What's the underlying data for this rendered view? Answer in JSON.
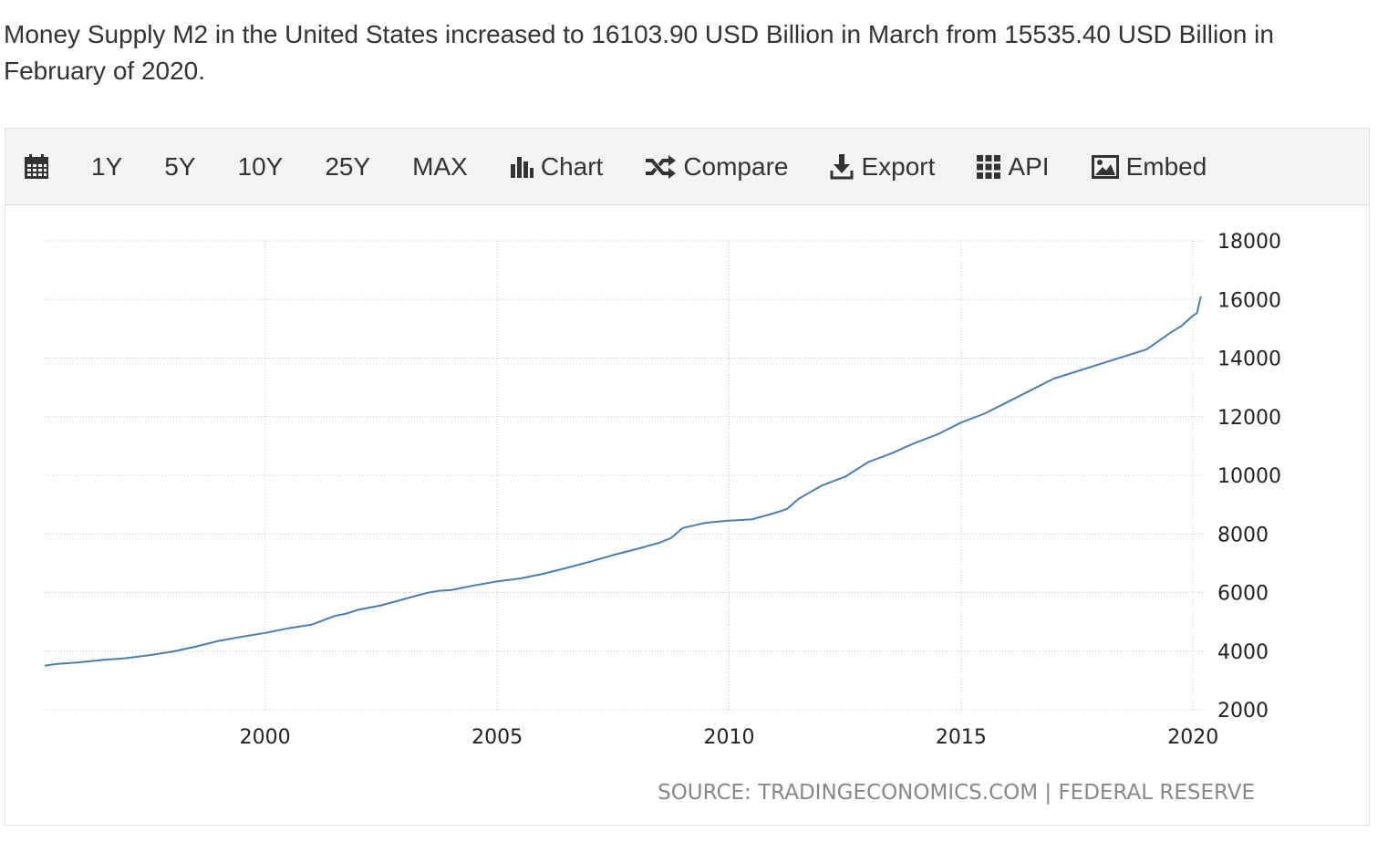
{
  "description": "Money Supply M2 in the United States increased to 16103.90 USD Billion in March from 15535.40 USD Billion in February of 2020.",
  "toolbar": {
    "items": [
      {
        "label": "1Y"
      },
      {
        "label": "5Y"
      },
      {
        "label": "10Y"
      },
      {
        "label": "25Y"
      },
      {
        "label": "MAX"
      },
      {
        "label": "Chart",
        "icon": "bar-chart-icon"
      },
      {
        "label": "Compare",
        "icon": "shuffle-icon"
      },
      {
        "label": "Export",
        "icon": "download-icon"
      },
      {
        "label": "API",
        "icon": "grid-icon"
      },
      {
        "label": "Embed",
        "icon": "image-icon"
      }
    ]
  },
  "source": "SOURCE: TRADINGECONOMICS.COM | FEDERAL RESERVE",
  "chart_data": {
    "type": "line",
    "title": "",
    "xlabel": "",
    "ylabel": "",
    "xlim": [
      1995.25,
      2020.25
    ],
    "ylim": [
      2000,
      18000
    ],
    "x_ticks": [
      2000,
      2005,
      2010,
      2015,
      2020
    ],
    "y_ticks": [
      2000,
      4000,
      6000,
      8000,
      10000,
      12000,
      14000,
      16000,
      18000
    ],
    "y_axis_position": "right",
    "grid": true,
    "legend": "none",
    "line_color": "#4a7fad",
    "series": [
      {
        "x": [
          1995.25,
          1995.5,
          1996.0,
          1996.5,
          1997.0,
          1997.5,
          1998.0,
          1998.5,
          1999.0,
          1999.5,
          2000.0,
          2000.5,
          2001.0,
          2001.5,
          2001.75,
          2002.0,
          2002.5,
          2003.0,
          2003.5,
          2003.75,
          2004.0,
          2004.5,
          2005.0,
          2005.5,
          2006.0,
          2006.5,
          2007.0,
          2007.5,
          2008.0,
          2008.5,
          2008.75,
          2009.0,
          2009.5,
          2010.0,
          2010.5,
          2011.0,
          2011.25,
          2011.5,
          2012.0,
          2012.5,
          2013.0,
          2013.5,
          2014.0,
          2014.5,
          2015.0,
          2015.5,
          2016.0,
          2016.5,
          2017.0,
          2017.5,
          2018.0,
          2018.5,
          2019.0,
          2019.5,
          2019.75,
          2020.0,
          2020.083,
          2020.167
        ],
        "values": [
          3500,
          3560,
          3620,
          3700,
          3760,
          3860,
          3980,
          4150,
          4350,
          4490,
          4620,
          4780,
          4900,
          5200,
          5280,
          5410,
          5560,
          5780,
          5990,
          6060,
          6080,
          6240,
          6380,
          6480,
          6640,
          6840,
          7050,
          7280,
          7480,
          7700,
          7860,
          8200,
          8380,
          8450,
          8500,
          8720,
          8850,
          9200,
          9650,
          9950,
          10450,
          10750,
          11100,
          11400,
          11800,
          12100,
          12500,
          12900,
          13300,
          13550,
          13800,
          14050,
          14300,
          14850,
          15100,
          15450,
          15535.4,
          16103.9
        ]
      }
    ]
  }
}
